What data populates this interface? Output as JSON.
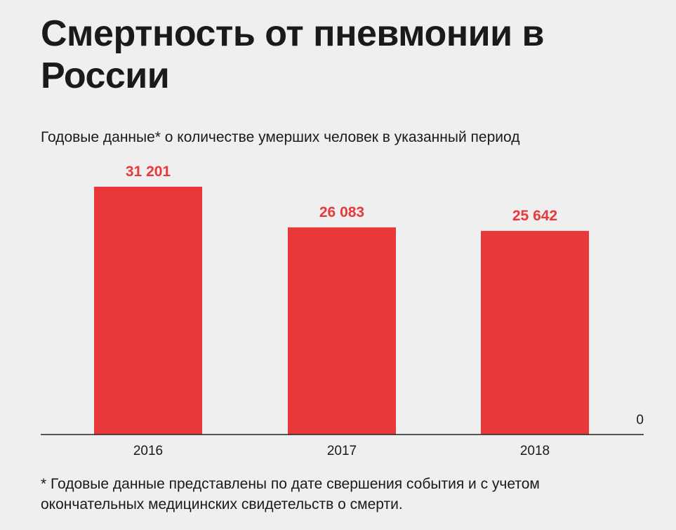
{
  "header": {
    "title": "Смертность от пневмонии в России",
    "subtitle": "Годовые данные* о количестве умерших человек в указанный период"
  },
  "footnote": "* Годовые данные представлены по дате свершения события и с учетом окончательных медицинских свидетельств о смерти.",
  "colors": {
    "bar": "#e8383a",
    "axis": "#222222",
    "background": "#efefef"
  },
  "chart_data": {
    "type": "bar",
    "title": "Смертность от пневмонии в России",
    "subtitle": "Годовые данные* о количестве умерших человек в указанный период",
    "categories": [
      "2016",
      "2017",
      "2018"
    ],
    "values": [
      31201,
      26083,
      25642
    ],
    "value_labels": [
      "31 201",
      "26 083",
      "25 642"
    ],
    "baseline_label": "0",
    "ylim": [
      0,
      31201
    ],
    "grid": false,
    "legend": "none",
    "xlabel": "",
    "ylabel": ""
  }
}
